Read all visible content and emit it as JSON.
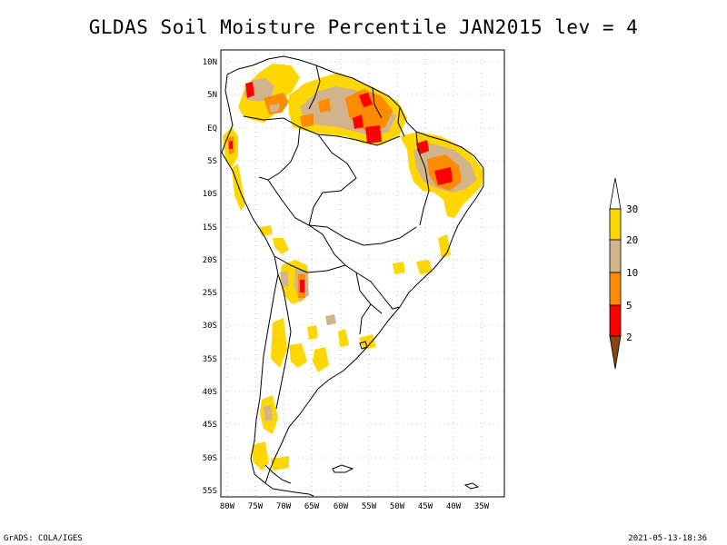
{
  "title": "GLDAS Soil Moisture Percentile JAN2015 lev = 4",
  "footer": {
    "left": "GrADS: COLA/IGES",
    "right": "2021-05-13-18:36"
  },
  "map": {
    "region": "South America",
    "lon_range": [
      -80,
      -30
    ],
    "lat_range": [
      -56,
      12
    ],
    "lat_labels": [
      "10N",
      "5N",
      "EQ",
      "5S",
      "10S",
      "15S",
      "20S",
      "25S",
      "30S",
      "35S",
      "40S",
      "45S",
      "50S",
      "55S"
    ],
    "lon_labels": [
      "80W",
      "75W",
      "70W",
      "65W",
      "60W",
      "55W",
      "50W",
      "45W",
      "40W",
      "35W"
    ],
    "grid": "dotted"
  },
  "legend": {
    "labels": [
      "30",
      "20",
      "10",
      "5",
      "2"
    ],
    "colors": {
      "above_30": "#ffffff",
      "20_30": "#ffd700",
      "10_20": "#d2b48c",
      "5_10": "#ff8c00",
      "2_5": "#ff0000",
      "below_2": "#8b4513"
    }
  }
}
